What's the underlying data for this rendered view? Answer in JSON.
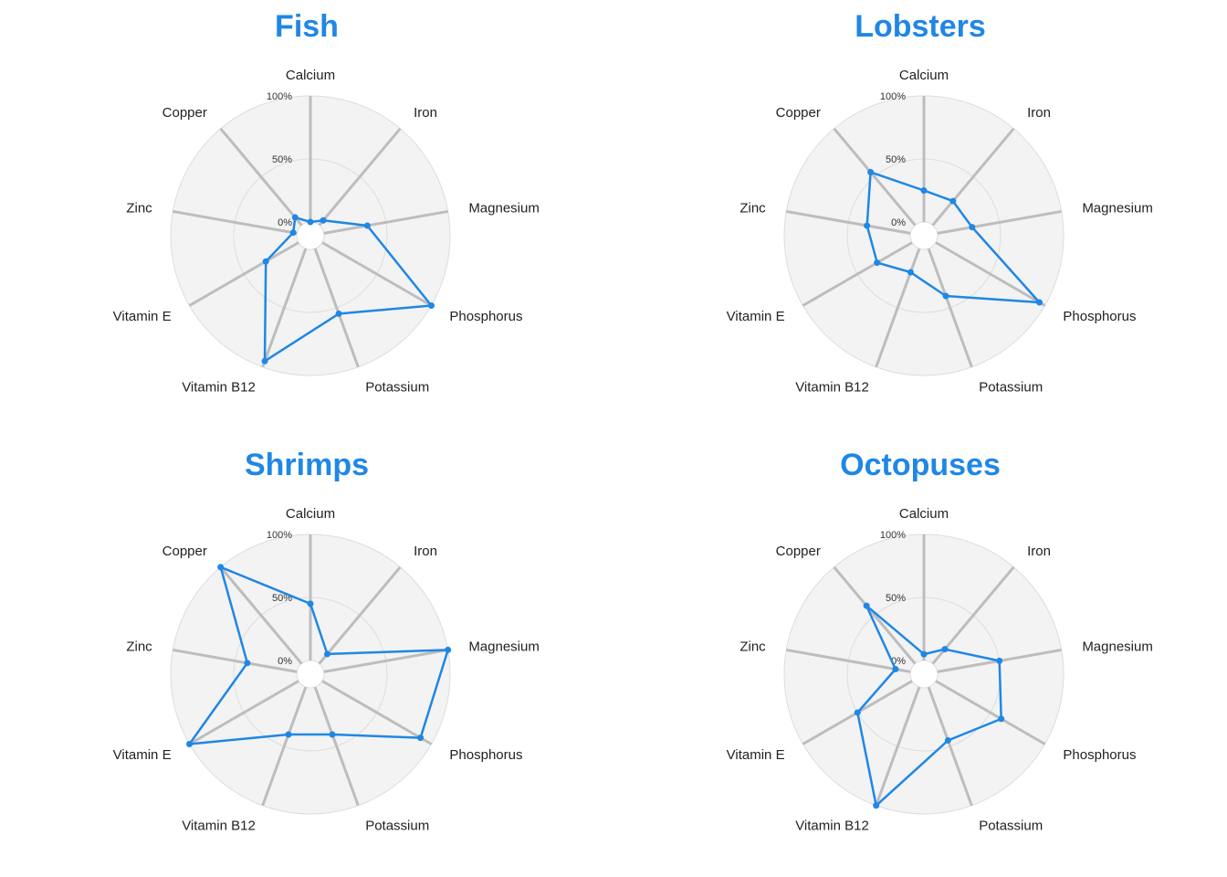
{
  "chart_data": [
    {
      "type": "radar",
      "title": "Fish",
      "axes": [
        "Calcium",
        "Iron",
        "Magnesium",
        "Phosphorus",
        "Potassium",
        "Vitamin B12",
        "Vitamin E",
        "Zinc",
        "Copper"
      ],
      "ticks": [
        "0%",
        "50%",
        "100%"
      ],
      "ylim": [
        0,
        100
      ],
      "series": [
        {
          "values": [
            0,
            5,
            35,
            100,
            55,
            95,
            30,
            3,
            8
          ]
        }
      ],
      "color": "#1f87e5"
    },
    {
      "type": "radar",
      "title": "Lobsters",
      "axes": [
        "Calcium",
        "Iron",
        "Magnesium",
        "Phosphorus",
        "Potassium",
        "Vitamin B12",
        "Vitamin E",
        "Zinc",
        "Copper"
      ],
      "ticks": [
        "0%",
        "50%",
        "100%"
      ],
      "ylim": [
        0,
        100
      ],
      "series": [
        {
          "values": [
            25,
            25,
            28,
            95,
            40,
            20,
            32,
            35,
            55
          ]
        }
      ],
      "color": "#1f87e5"
    },
    {
      "type": "radar",
      "title": "Shrimps",
      "axes": [
        "Calcium",
        "Iron",
        "Magnesium",
        "Phosphorus",
        "Potassium",
        "Vitamin B12",
        "Vitamin E",
        "Zinc",
        "Copper"
      ],
      "ticks": [
        "0%",
        "50%",
        "100%"
      ],
      "ylim": [
        0,
        100
      ],
      "series": [
        {
          "values": [
            45,
            10,
            100,
            90,
            40,
            40,
            100,
            40,
            100
          ]
        }
      ],
      "color": "#1f87e5"
    },
    {
      "type": "radar",
      "title": "Octopuses",
      "axes": [
        "Calcium",
        "Iron",
        "Magnesium",
        "Phosphorus",
        "Potassium",
        "Vitamin B12",
        "Vitamin E",
        "Zinc",
        "Copper"
      ],
      "ticks": [
        "0%",
        "50%",
        "100%"
      ],
      "ylim": [
        0,
        100
      ],
      "series": [
        {
          "values": [
            5,
            15,
            50,
            60,
            45,
            100,
            50,
            12,
            60
          ]
        }
      ],
      "color": "#1f87e5"
    }
  ]
}
